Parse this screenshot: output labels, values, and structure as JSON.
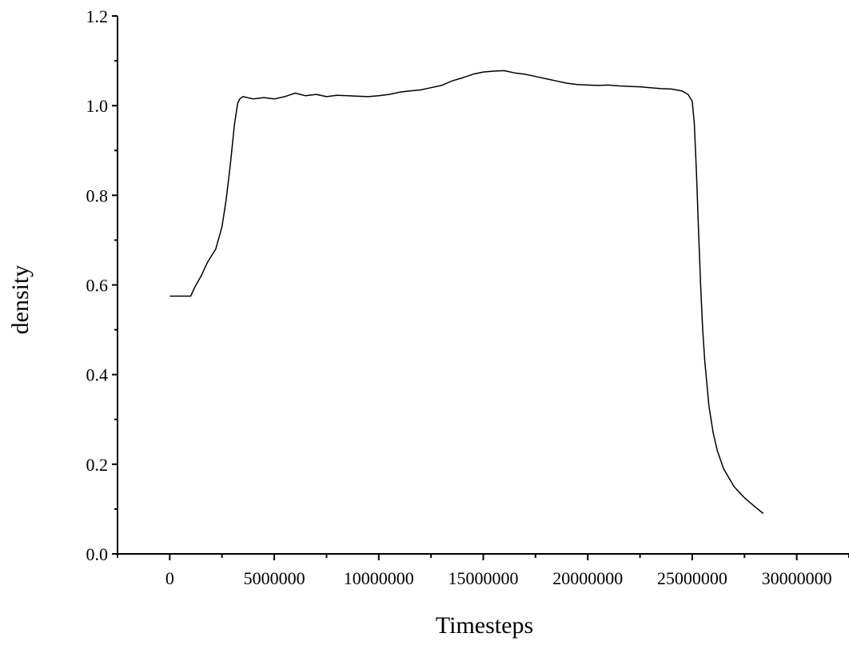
{
  "chart_data": {
    "type": "line",
    "xlabel": "Timesteps",
    "ylabel": "density",
    "xlim": [
      -2500000,
      32500000
    ],
    "ylim": [
      0.0,
      1.2
    ],
    "x_ticks": [
      0,
      5000000,
      10000000,
      15000000,
      20000000,
      25000000,
      30000000
    ],
    "x_tick_labels": [
      "0",
      "5000000",
      "10000000",
      "15000000",
      "20000000",
      "25000000",
      "30000000"
    ],
    "y_ticks": [
      0.0,
      0.2,
      0.4,
      0.6,
      0.8,
      1.0,
      1.2
    ],
    "y_tick_labels": [
      "0.0",
      "0.2",
      "0.4",
      "0.6",
      "0.8",
      "1.0",
      "1.2"
    ],
    "grid": false,
    "legend": "none",
    "line_color": "#000000",
    "series": [
      {
        "x": [
          0,
          500000,
          1000000,
          1200000,
          1500000,
          1800000,
          2000000,
          2200000,
          2500000,
          2700000,
          2900000,
          3100000,
          3250000,
          3350000,
          3500000,
          4000000,
          4500000,
          5000000,
          5500000,
          6000000,
          6500000,
          7000000,
          7500000,
          8000000,
          8500000,
          9000000,
          9500000,
          10000000,
          10500000,
          11000000,
          11500000,
          12000000,
          12500000,
          13000000,
          13500000,
          14000000,
          14500000,
          15000000,
          15500000,
          16000000,
          16500000,
          17000000,
          17500000,
          18000000,
          18500000,
          19000000,
          19500000,
          20000000,
          20500000,
          21000000,
          21500000,
          22000000,
          22500000,
          23000000,
          23500000,
          24000000,
          24500000,
          24800000,
          25000000,
          25100000,
          25200000,
          25300000,
          25400000,
          25500000,
          25600000,
          25700000,
          25800000,
          26000000,
          26200000,
          26500000,
          27000000,
          27500000,
          28000000,
          28400000
        ],
        "y": [
          0.575,
          0.575,
          0.575,
          0.595,
          0.62,
          0.65,
          0.665,
          0.68,
          0.73,
          0.79,
          0.87,
          0.96,
          1.005,
          1.015,
          1.02,
          1.015,
          1.018,
          1.015,
          1.02,
          1.028,
          1.022,
          1.025,
          1.02,
          1.023,
          1.022,
          1.021,
          1.02,
          1.022,
          1.025,
          1.03,
          1.033,
          1.035,
          1.04,
          1.045,
          1.055,
          1.062,
          1.07,
          1.075,
          1.077,
          1.078,
          1.073,
          1.07,
          1.065,
          1.06,
          1.055,
          1.05,
          1.047,
          1.046,
          1.045,
          1.046,
          1.044,
          1.043,
          1.042,
          1.04,
          1.038,
          1.037,
          1.033,
          1.025,
          1.01,
          0.96,
          0.85,
          0.72,
          0.6,
          0.5,
          0.43,
          0.38,
          0.33,
          0.27,
          0.23,
          0.19,
          0.15,
          0.125,
          0.105,
          0.09
        ]
      }
    ]
  }
}
